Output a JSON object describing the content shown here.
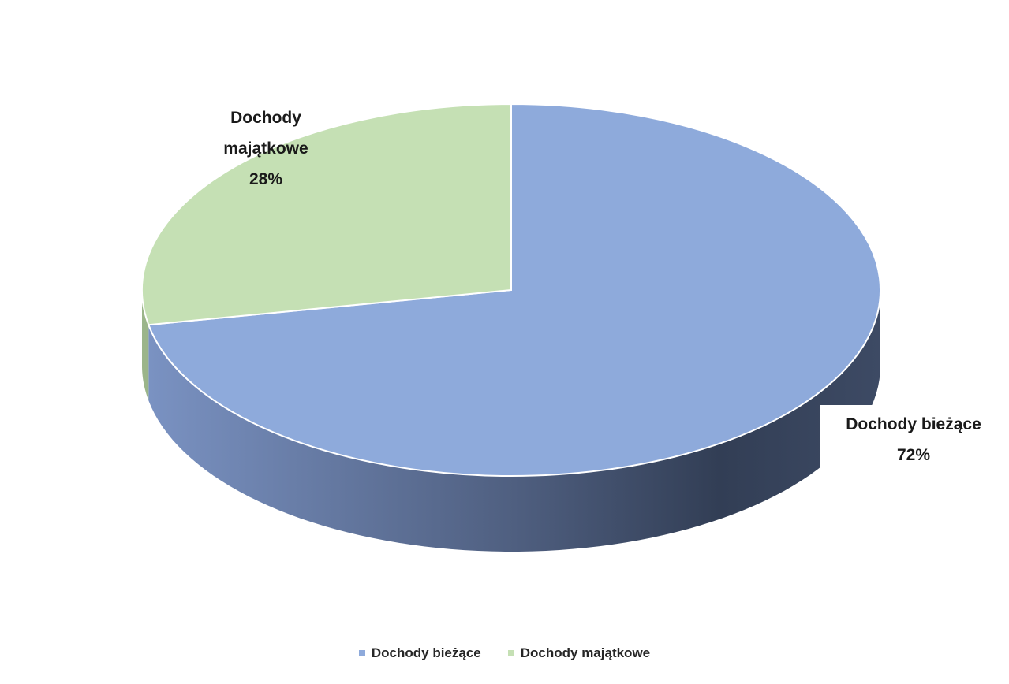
{
  "chart_data": {
    "type": "pie",
    "categories": [
      "Dochody bieżące",
      "Dochody majątkowe"
    ],
    "values": [
      72,
      28
    ],
    "unit": "%",
    "data_labels": [
      {
        "lines": [
          "Dochody bieżące",
          "72%"
        ]
      },
      {
        "lines": [
          "Dochody",
          "majątkowe",
          "28%"
        ]
      }
    ],
    "colors": [
      "#8eaadb",
      "#c5e0b4"
    ],
    "side_colors": [
      "#6e86b4",
      "#9bb58a"
    ],
    "style": "3d",
    "legend": "bottom",
    "legend_items": [
      {
        "label": "Dochody bieżące",
        "color": "#8eaadb"
      },
      {
        "label": "Dochody majątkowe",
        "color": "#c5e0b4"
      }
    ]
  }
}
